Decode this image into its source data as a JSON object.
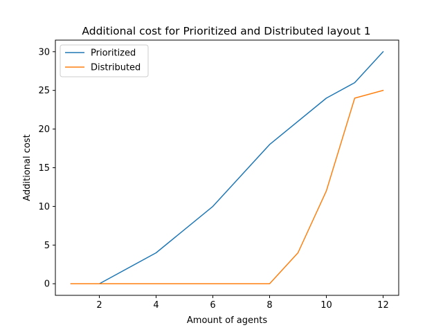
{
  "chart_data": {
    "type": "line",
    "title": "Additional cost for Prioritized and Distributed layout 1",
    "xlabel": "Amount of agents",
    "ylabel": "Additional cost",
    "xlim": [
      0.45,
      12.55
    ],
    "ylim": [
      -1.5,
      31.5
    ],
    "xticks": [
      2,
      4,
      6,
      8,
      10,
      12
    ],
    "yticks": [
      0,
      5,
      10,
      15,
      20,
      25,
      30
    ],
    "grid": false,
    "legend_position": "upper-left",
    "series": [
      {
        "name": "Prioritized",
        "color": "#1f77b4",
        "x": [
          1,
          2,
          4,
          6,
          8,
          10,
          11,
          12
        ],
        "y": [
          0,
          0,
          4,
          10,
          18,
          24,
          26,
          30
        ]
      },
      {
        "name": "Distributed",
        "color": "#ff7f0e",
        "x": [
          1,
          2,
          4,
          6,
          8,
          9,
          10,
          11,
          12
        ],
        "y": [
          0,
          0,
          0,
          0,
          0,
          4,
          12,
          24,
          25
        ]
      }
    ]
  }
}
